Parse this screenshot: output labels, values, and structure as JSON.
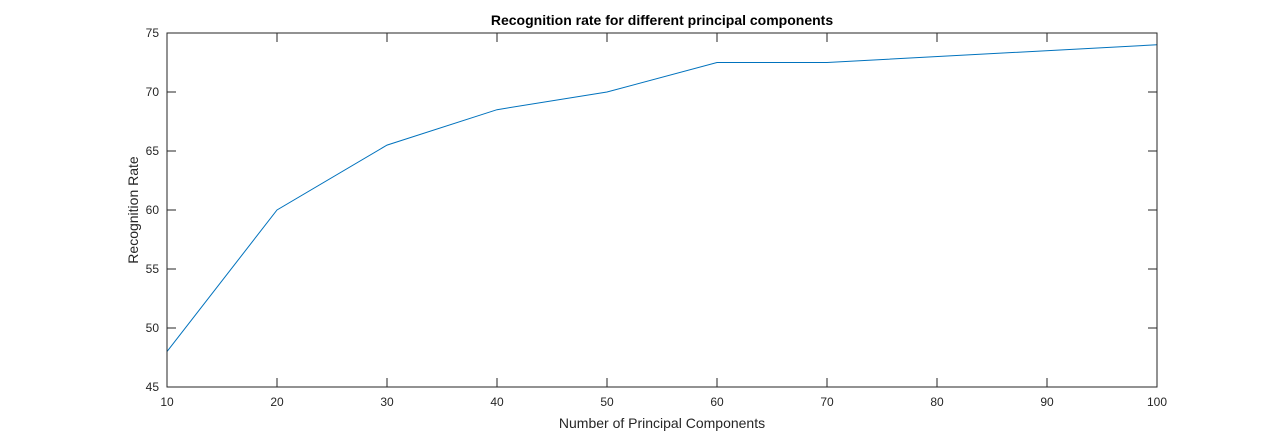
{
  "chart_data": {
    "type": "line",
    "title": "Recognition rate for different principal components",
    "xlabel": "Number of Principal Components",
    "ylabel": "Recognition Rate",
    "xlim": [
      10,
      100
    ],
    "ylim": [
      45,
      75
    ],
    "xticks": [
      10,
      20,
      30,
      40,
      50,
      60,
      70,
      80,
      90,
      100
    ],
    "yticks": [
      45,
      50,
      55,
      60,
      65,
      70,
      75
    ],
    "grid": false,
    "series": [
      {
        "color": "#0072BD",
        "x": [
          10,
          20,
          30,
          40,
          50,
          60,
          70,
          100
        ],
        "y": [
          48,
          60,
          65.5,
          68.5,
          70,
          72.5,
          72.5,
          74
        ]
      }
    ]
  }
}
